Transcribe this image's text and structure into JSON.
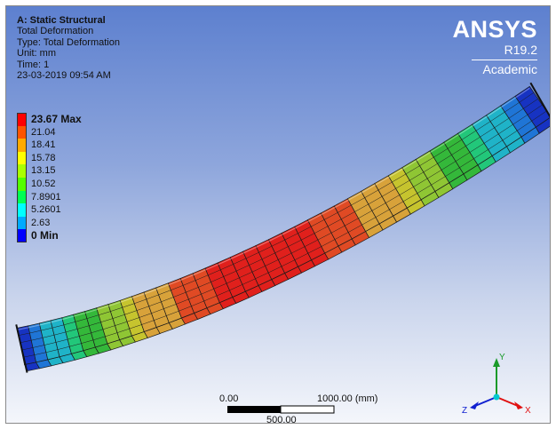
{
  "info": {
    "title": "A: Static Structural",
    "result": "Total Deformation",
    "type_line": "Type: Total Deformation",
    "unit_line": "Unit: mm",
    "time_line": "Time: 1",
    "timestamp": "23-03-2019 09:54 AM"
  },
  "brand": {
    "logo": "ANSYS",
    "version": "R19.2",
    "edition": "Academic"
  },
  "legend": {
    "entries": [
      {
        "label": "23.67 Max",
        "value": 23.67,
        "color": "#ff0000",
        "bold": true
      },
      {
        "label": "21.04",
        "value": 21.04,
        "color": "#ff5400",
        "bold": false
      },
      {
        "label": "18.41",
        "value": 18.41,
        "color": "#ffaa00",
        "bold": false
      },
      {
        "label": "15.78",
        "value": 15.78,
        "color": "#ffff00",
        "bold": false
      },
      {
        "label": "13.15",
        "value": 13.15,
        "color": "#aaff00",
        "bold": false
      },
      {
        "label": "10.52",
        "value": 10.52,
        "color": "#54ff00",
        "bold": false
      },
      {
        "label": "7.8901",
        "value": 7.8901,
        "color": "#00ff54",
        "bold": false
      },
      {
        "label": "5.2601",
        "value": 5.2601,
        "color": "#00ffff",
        "bold": false
      },
      {
        "label": "2.63",
        "value": 2.63,
        "color": "#00aaff",
        "bold": false
      },
      {
        "label": "0 Min",
        "value": 0,
        "color": "#0000ff",
        "bold": true
      }
    ]
  },
  "scale_bar": {
    "start_label": "0.00",
    "end_label": "1000.00 (mm)",
    "mid_label": "500.00"
  },
  "triad": {
    "x_label": "X",
    "y_label": "Y",
    "z_label": "Z",
    "x_color": "#e01010",
    "y_color": "#1a9a2a",
    "z_color": "#1020d0"
  },
  "contour_colors": {
    "0": "#1733c2",
    "1": "#1f75d6",
    "2": "#1fb3c8",
    "3": "#22c77a",
    "4": "#34b83a",
    "5": "#8fc634",
    "6": "#c6c42e",
    "7": "#d8a23a",
    "8": "#e04a24",
    "9": "#e0201c"
  }
}
